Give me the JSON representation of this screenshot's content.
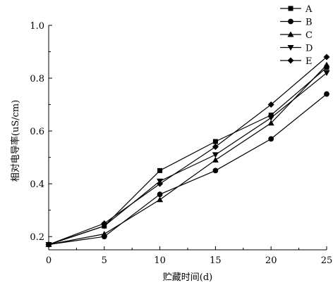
{
  "chart_data": {
    "type": "line",
    "xlabel": "贮藏时间(d)",
    "ylabel": "相对电导率(uS/cm)",
    "x": [
      0,
      5,
      10,
      15,
      20,
      25
    ],
    "xticks": [
      "0",
      "5",
      "10",
      "15",
      "20",
      "25"
    ],
    "yticks": [
      "0.2",
      "0.4",
      "0.6",
      "0.8",
      "1.0"
    ],
    "xlim": [
      0,
      25
    ],
    "ylim": [
      0.15,
      1.0
    ],
    "grid": false,
    "legend_position": "top-right",
    "series": [
      {
        "name": "A",
        "marker": "square",
        "values": [
          0.17,
          0.24,
          0.45,
          0.56,
          0.66,
          0.84
        ]
      },
      {
        "name": "B",
        "marker": "circle",
        "values": [
          0.17,
          0.2,
          0.36,
          0.45,
          0.57,
          0.74
        ]
      },
      {
        "name": "C",
        "marker": "triangle-up",
        "values": [
          0.17,
          0.21,
          0.34,
          0.49,
          0.63,
          0.85
        ]
      },
      {
        "name": "D",
        "marker": "triangle-down",
        "values": [
          0.17,
          0.24,
          0.41,
          0.51,
          0.65,
          0.82
        ]
      },
      {
        "name": "E",
        "marker": "diamond",
        "values": [
          0.17,
          0.25,
          0.4,
          0.54,
          0.7,
          0.88
        ]
      }
    ],
    "line_color": "#000000"
  }
}
